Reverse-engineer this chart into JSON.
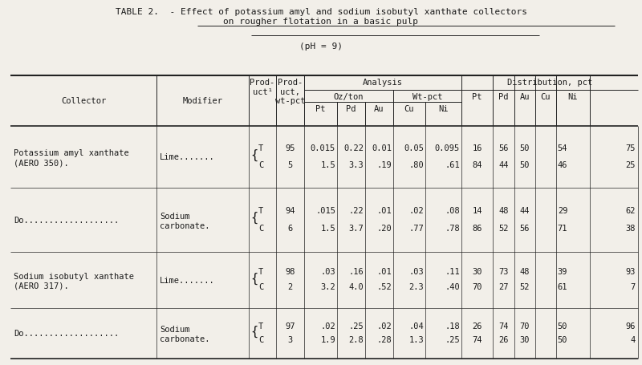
{
  "title_line1": "TABLE 2.  - Effect of potassium amyl and sodium isobutyl xanthate collectors",
  "title_line2": "on rougher flotation in a basic pulp",
  "subtitle": "(pH = 9)",
  "bg_color": "#f2efe9",
  "text_color": "#1a1a1a",
  "data_rows": [
    {
      "collector_l1": "Potassium amyl xanthate",
      "collector_l2": "(AERO 350).",
      "modifier_l1": "Lime.......",
      "modifier_l2": "",
      "tc_pairs": [
        {
          "tc": "T",
          "prod_pct": "95",
          "pt": "0.015",
          "pd": "0.22",
          "au": "0.01",
          "cu": "0.05",
          "ni": "0.095",
          "dist_pt": "16",
          "dist_pd": "56",
          "dist_au": "50",
          "dist_cu": "54",
          "dist_ni": "75"
        },
        {
          "tc": "C",
          "prod_pct": "5",
          "pt": "1.5",
          "pd": "3.3",
          "au": ".19",
          "cu": ".80",
          "ni": ".61",
          "dist_pt": "84",
          "dist_pd": "44",
          "dist_au": "50",
          "dist_cu": "46",
          "dist_ni": "25"
        }
      ]
    },
    {
      "collector_l1": "Do...................",
      "collector_l2": "",
      "modifier_l1": "Sodium",
      "modifier_l2": "carbonate.",
      "tc_pairs": [
        {
          "tc": "T",
          "prod_pct": "94",
          "pt": ".015",
          "pd": ".22",
          "au": ".01",
          "cu": ".02",
          "ni": ".08",
          "dist_pt": "14",
          "dist_pd": "48",
          "dist_au": "44",
          "dist_cu": "29",
          "dist_ni": "62"
        },
        {
          "tc": "C",
          "prod_pct": "6",
          "pt": "1.5",
          "pd": "3.7",
          "au": ".20",
          "cu": ".77",
          "ni": ".78",
          "dist_pt": "86",
          "dist_pd": "52",
          "dist_au": "56",
          "dist_cu": "71",
          "dist_ni": "38"
        }
      ]
    },
    {
      "collector_l1": "Sodium isobutyl xanthate",
      "collector_l2": "(AERO 317).",
      "modifier_l1": "Lime.......",
      "modifier_l2": "",
      "tc_pairs": [
        {
          "tc": "T",
          "prod_pct": "98",
          "pt": ".03",
          "pd": ".16",
          "au": ".01",
          "cu": ".03",
          "ni": ".11",
          "dist_pt": "30",
          "dist_pd": "73",
          "dist_au": "48",
          "dist_cu": "39",
          "dist_ni": "93"
        },
        {
          "tc": "C",
          "prod_pct": "2",
          "pt": "3.2",
          "pd": "4.0",
          "au": ".52",
          "cu": "2.3",
          "ni": ".40",
          "dist_pt": "70",
          "dist_pd": "27",
          "dist_au": "52",
          "dist_cu": "61",
          "dist_ni": "7"
        }
      ]
    },
    {
      "collector_l1": "Do...................",
      "collector_l2": "",
      "modifier_l1": "Sodium",
      "modifier_l2": "carbonate.",
      "tc_pairs": [
        {
          "tc": "T",
          "prod_pct": "97",
          "pt": ".02",
          "pd": ".25",
          "au": ".02",
          "cu": ".04",
          "ni": ".18",
          "dist_pt": "26",
          "dist_pd": "74",
          "dist_au": "70",
          "dist_cu": "50",
          "dist_ni": "96"
        },
        {
          "tc": "C",
          "prod_pct": "3",
          "pt": "1.9",
          "pd": "2.8",
          "au": ".28",
          "cu": "1.3",
          "ni": ".25",
          "dist_pt": "74",
          "dist_pd": "26",
          "dist_au": "30",
          "dist_cu": "50",
          "dist_ni": "4"
        }
      ]
    }
  ]
}
